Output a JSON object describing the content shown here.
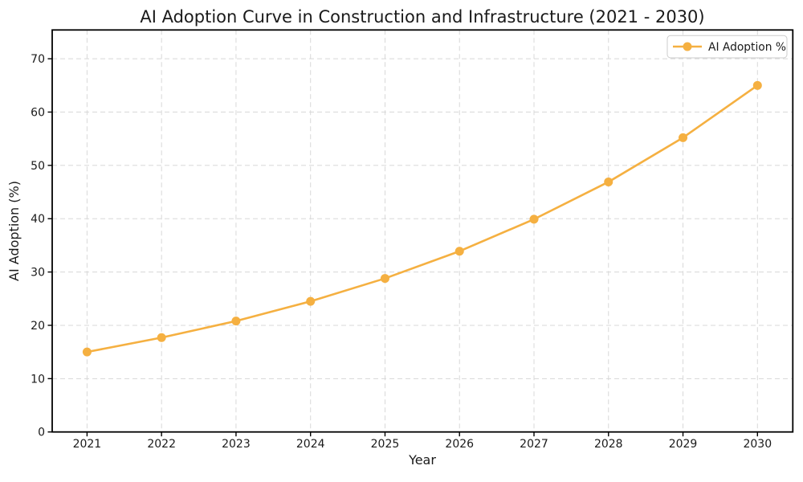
{
  "chart_data": {
    "type": "line",
    "title": "AI Adoption Curve in Construction and Infrastructure (2021 - 2030)",
    "x": [
      2021,
      2022,
      2023,
      2024,
      2025,
      2026,
      2027,
      2028,
      2029,
      2030
    ],
    "series": [
      {
        "name": "AI Adoption %",
        "values": [
          15.0,
          17.7,
          20.8,
          24.5,
          28.8,
          33.9,
          39.9,
          46.9,
          55.2,
          65.0
        ],
        "color": "#F5B041",
        "marker": "circle"
      }
    ],
    "xlabel": "Year",
    "ylabel": "AI Adoption (%)",
    "ylim": [
      0,
      75.4
    ],
    "yticks": [
      0,
      10,
      20,
      30,
      40,
      50,
      60,
      70
    ],
    "grid": true,
    "grid_style": "dashed",
    "legend": {
      "position": "upper right",
      "labels": [
        "AI Adoption %"
      ]
    }
  },
  "colors": {
    "line": "#F5B041",
    "grid": "#D8D8D8",
    "spine": "#000000",
    "text": "#1A1A1A",
    "legend_border": "#CCCCCC",
    "background": "#FFFFFF"
  }
}
